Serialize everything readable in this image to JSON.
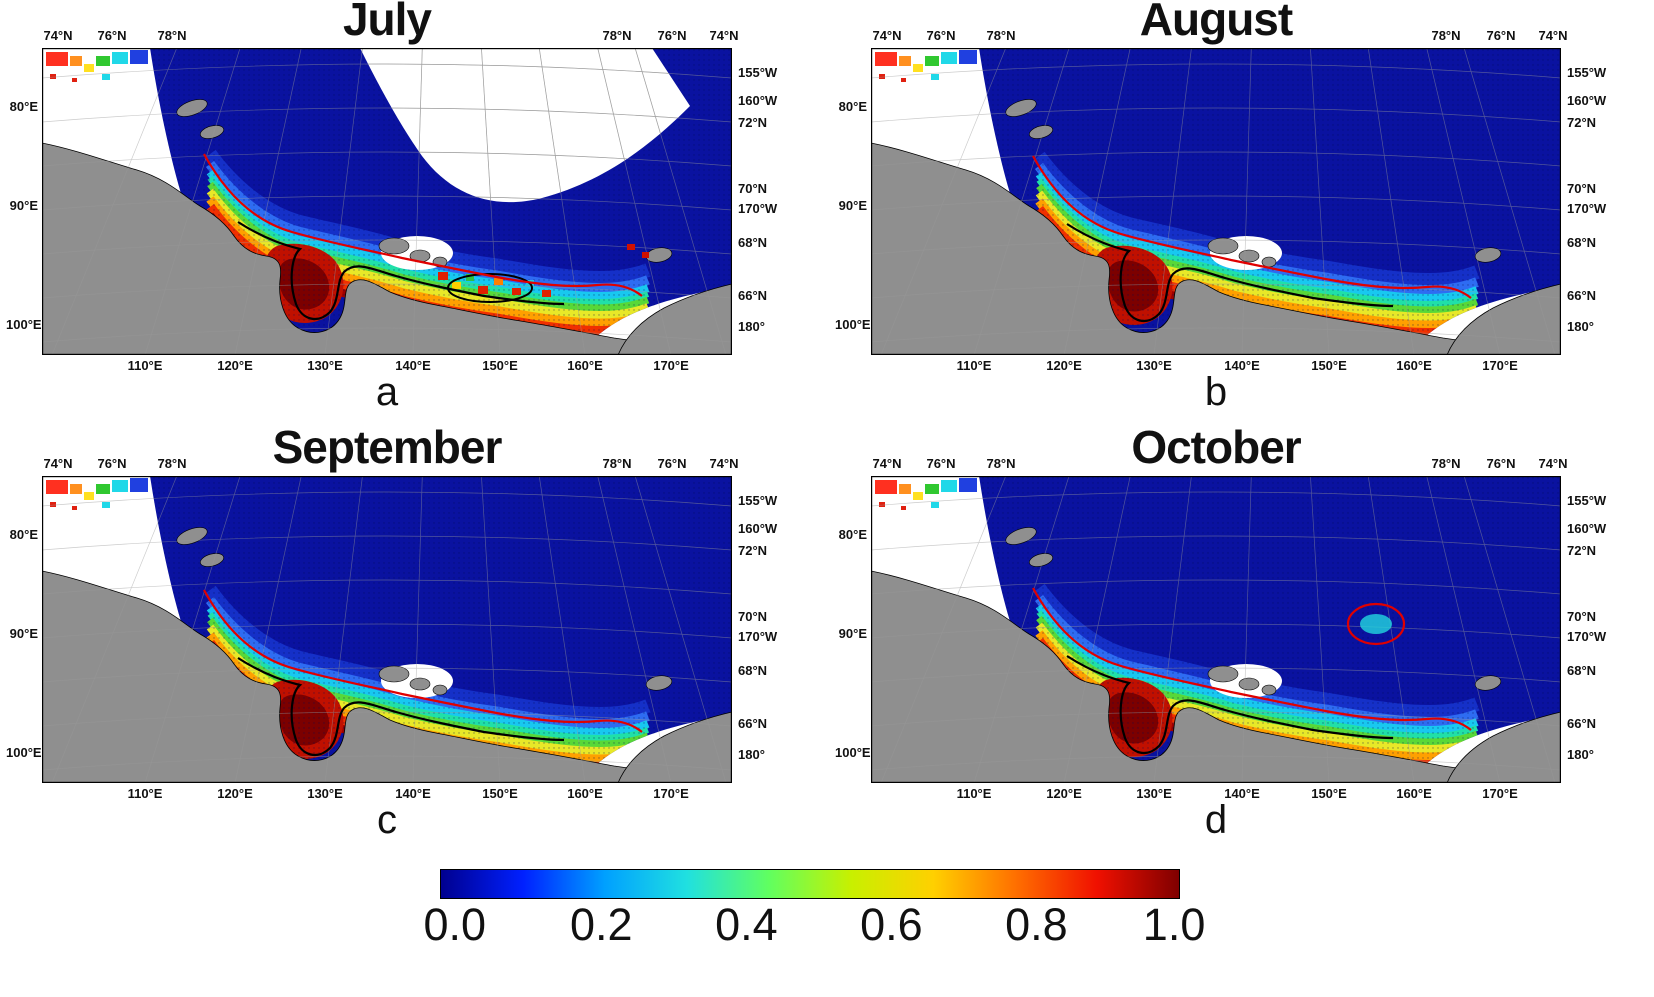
{
  "figure": {
    "panels": [
      {
        "title": "July",
        "letter": "a"
      },
      {
        "title": "August",
        "letter": "b"
      },
      {
        "title": "September",
        "letter": "c"
      },
      {
        "title": "October",
        "letter": "d"
      }
    ],
    "axis": {
      "top_left": [
        "74°N",
        "76°N",
        "78°N"
      ],
      "top_right": [
        "78°N",
        "76°N",
        "74°N"
      ],
      "left": [
        "80°E",
        "90°E",
        "100°E"
      ],
      "right": [
        "155°W",
        "160°W",
        "72°N",
        "70°N",
        "170°W",
        "68°N",
        "66°N",
        "180°"
      ],
      "bottom": [
        "110°E",
        "120°E",
        "130°E",
        "140°E",
        "150°E",
        "160°E",
        "170°E"
      ]
    },
    "colorbar": {
      "min": 0.0,
      "max": 1.0,
      "ticks": [
        "0.0",
        "0.2",
        "0.4",
        "0.6",
        "0.8",
        "1.0"
      ]
    },
    "colors": {
      "land": "#8f8f8f",
      "ocean_low": "#0a12a0",
      "contour_red": "#e00000",
      "contour_black": "#000000",
      "jet": [
        "#00008f",
        "#0020ff",
        "#00a0ff",
        "#20e0e0",
        "#60ff60",
        "#c8f000",
        "#ffd000",
        "#ff7000",
        "#f01000",
        "#800000"
      ]
    }
  }
}
